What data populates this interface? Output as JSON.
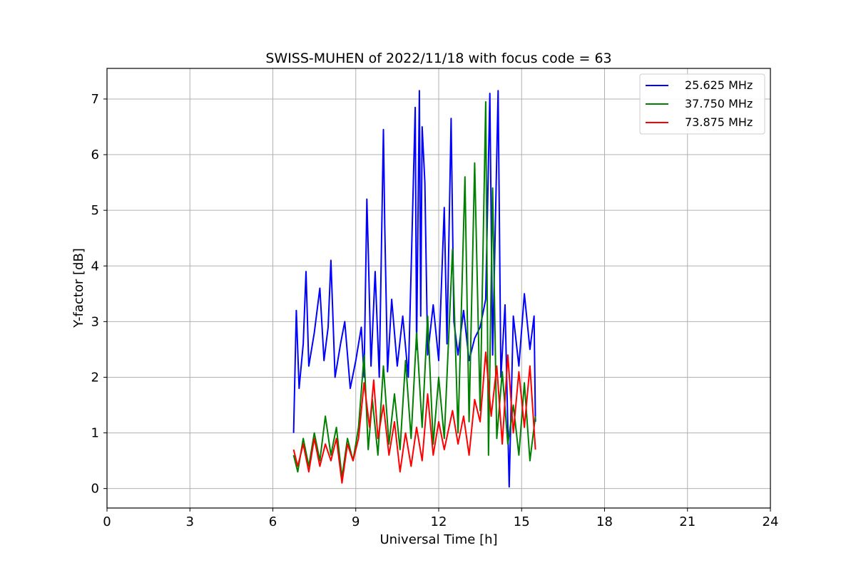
{
  "chart_data": {
    "type": "line",
    "title": "SWISS-MUHEN of 2022/11/18 with focus code = 63",
    "xlabel": "Universal Time [h]",
    "ylabel": "Y-factor [dB]",
    "xlim": [
      0,
      24
    ],
    "ylim": [
      -0.35,
      7.55
    ],
    "xticks": [
      0,
      3,
      6,
      9,
      12,
      15,
      18,
      21,
      24
    ],
    "yticks": [
      0,
      1,
      2,
      3,
      4,
      5,
      6,
      7
    ],
    "grid": true,
    "legend_position": "top-right",
    "series": [
      {
        "name": "25.625 MHz",
        "color": "#0000ff",
        "points": [
          [
            6.75,
            1.0
          ],
          [
            6.85,
            3.2
          ],
          [
            6.95,
            1.8
          ],
          [
            7.1,
            2.6
          ],
          [
            7.2,
            3.9
          ],
          [
            7.3,
            2.2
          ],
          [
            7.5,
            2.8
          ],
          [
            7.7,
            3.6
          ],
          [
            7.85,
            2.3
          ],
          [
            8.0,
            2.9
          ],
          [
            8.1,
            4.1
          ],
          [
            8.25,
            2.0
          ],
          [
            8.45,
            2.6
          ],
          [
            8.6,
            3.0
          ],
          [
            8.8,
            1.8
          ],
          [
            9.0,
            2.3
          ],
          [
            9.2,
            2.9
          ],
          [
            9.3,
            2.0
          ],
          [
            9.4,
            5.2
          ],
          [
            9.45,
            4.3
          ],
          [
            9.55,
            2.2
          ],
          [
            9.7,
            3.9
          ],
          [
            9.85,
            2.0
          ],
          [
            10.0,
            6.45
          ],
          [
            10.05,
            4.7
          ],
          [
            10.15,
            2.1
          ],
          [
            10.3,
            3.4
          ],
          [
            10.5,
            2.2
          ],
          [
            10.7,
            3.1
          ],
          [
            10.9,
            2.0
          ],
          [
            11.0,
            3.9
          ],
          [
            11.15,
            6.85
          ],
          [
            11.2,
            2.5
          ],
          [
            11.3,
            7.15
          ],
          [
            11.35,
            3.1
          ],
          [
            11.4,
            6.5
          ],
          [
            11.5,
            5.5
          ],
          [
            11.6,
            2.4
          ],
          [
            11.8,
            3.3
          ],
          [
            12.0,
            2.3
          ],
          [
            12.2,
            5.05
          ],
          [
            12.3,
            2.6
          ],
          [
            12.45,
            6.65
          ],
          [
            12.55,
            3.0
          ],
          [
            12.7,
            2.4
          ],
          [
            12.9,
            3.2
          ],
          [
            13.1,
            2.3
          ],
          [
            13.3,
            2.7
          ],
          [
            13.5,
            2.9
          ],
          [
            13.7,
            3.4
          ],
          [
            13.85,
            7.1
          ],
          [
            13.95,
            2.4
          ],
          [
            14.15,
            7.15
          ],
          [
            14.25,
            2.0
          ],
          [
            14.4,
            3.3
          ],
          [
            14.55,
            0.03
          ],
          [
            14.7,
            3.1
          ],
          [
            14.9,
            2.2
          ],
          [
            15.1,
            3.5
          ],
          [
            15.3,
            2.5
          ],
          [
            15.45,
            3.1
          ],
          [
            15.5,
            1.2
          ]
        ]
      },
      {
        "name": "37.750 MHz",
        "color": "#008000",
        "points": [
          [
            6.75,
            0.6
          ],
          [
            6.9,
            0.3
          ],
          [
            7.1,
            0.9
          ],
          [
            7.3,
            0.4
          ],
          [
            7.5,
            1.0
          ],
          [
            7.7,
            0.5
          ],
          [
            7.9,
            1.3
          ],
          [
            8.1,
            0.6
          ],
          [
            8.3,
            1.1
          ],
          [
            8.5,
            0.2
          ],
          [
            8.7,
            0.9
          ],
          [
            8.9,
            0.5
          ],
          [
            9.1,
            1.1
          ],
          [
            9.3,
            2.4
          ],
          [
            9.45,
            0.7
          ],
          [
            9.6,
            1.6
          ],
          [
            9.8,
            0.6
          ],
          [
            10.0,
            2.2
          ],
          [
            10.2,
            0.8
          ],
          [
            10.4,
            1.7
          ],
          [
            10.6,
            0.7
          ],
          [
            10.8,
            2.3
          ],
          [
            11.0,
            0.9
          ],
          [
            11.2,
            2.8
          ],
          [
            11.4,
            1.1
          ],
          [
            11.6,
            3.1
          ],
          [
            11.8,
            0.8
          ],
          [
            12.0,
            2.0
          ],
          [
            12.2,
            0.9
          ],
          [
            12.5,
            4.3
          ],
          [
            12.7,
            1.0
          ],
          [
            12.95,
            5.6
          ],
          [
            13.1,
            1.2
          ],
          [
            13.3,
            5.85
          ],
          [
            13.5,
            1.4
          ],
          [
            13.7,
            6.95
          ],
          [
            13.8,
            0.6
          ],
          [
            13.95,
            5.4
          ],
          [
            14.1,
            0.9
          ],
          [
            14.3,
            2.1
          ],
          [
            14.5,
            0.8
          ],
          [
            14.7,
            1.5
          ],
          [
            14.9,
            0.6
          ],
          [
            15.1,
            1.9
          ],
          [
            15.3,
            0.5
          ],
          [
            15.5,
            1.3
          ]
        ]
      },
      {
        "name": "73.875 MHz",
        "color": "#ff0000",
        "points": [
          [
            6.75,
            0.7
          ],
          [
            6.9,
            0.4
          ],
          [
            7.1,
            0.8
          ],
          [
            7.3,
            0.3
          ],
          [
            7.5,
            0.9
          ],
          [
            7.7,
            0.4
          ],
          [
            7.9,
            0.8
          ],
          [
            8.1,
            0.5
          ],
          [
            8.3,
            0.9
          ],
          [
            8.5,
            0.1
          ],
          [
            8.7,
            0.8
          ],
          [
            8.9,
            0.5
          ],
          [
            9.1,
            0.9
          ],
          [
            9.3,
            1.9
          ],
          [
            9.5,
            1.1
          ],
          [
            9.65,
            1.95
          ],
          [
            9.8,
            0.9
          ],
          [
            10.0,
            1.5
          ],
          [
            10.2,
            0.6
          ],
          [
            10.4,
            1.2
          ],
          [
            10.6,
            0.3
          ],
          [
            10.8,
            1.0
          ],
          [
            11.0,
            0.4
          ],
          [
            11.2,
            1.1
          ],
          [
            11.4,
            0.5
          ],
          [
            11.6,
            1.7
          ],
          [
            11.8,
            0.6
          ],
          [
            12.0,
            1.2
          ],
          [
            12.2,
            0.7
          ],
          [
            12.5,
            1.4
          ],
          [
            12.7,
            0.8
          ],
          [
            12.9,
            1.3
          ],
          [
            13.1,
            0.6
          ],
          [
            13.3,
            1.6
          ],
          [
            13.5,
            1.2
          ],
          [
            13.7,
            2.45
          ],
          [
            13.9,
            1.3
          ],
          [
            14.1,
            2.2
          ],
          [
            14.3,
            0.8
          ],
          [
            14.5,
            2.4
          ],
          [
            14.7,
            1.0
          ],
          [
            14.9,
            2.1
          ],
          [
            15.1,
            1.1
          ],
          [
            15.3,
            2.2
          ],
          [
            15.5,
            0.7
          ]
        ]
      }
    ]
  }
}
